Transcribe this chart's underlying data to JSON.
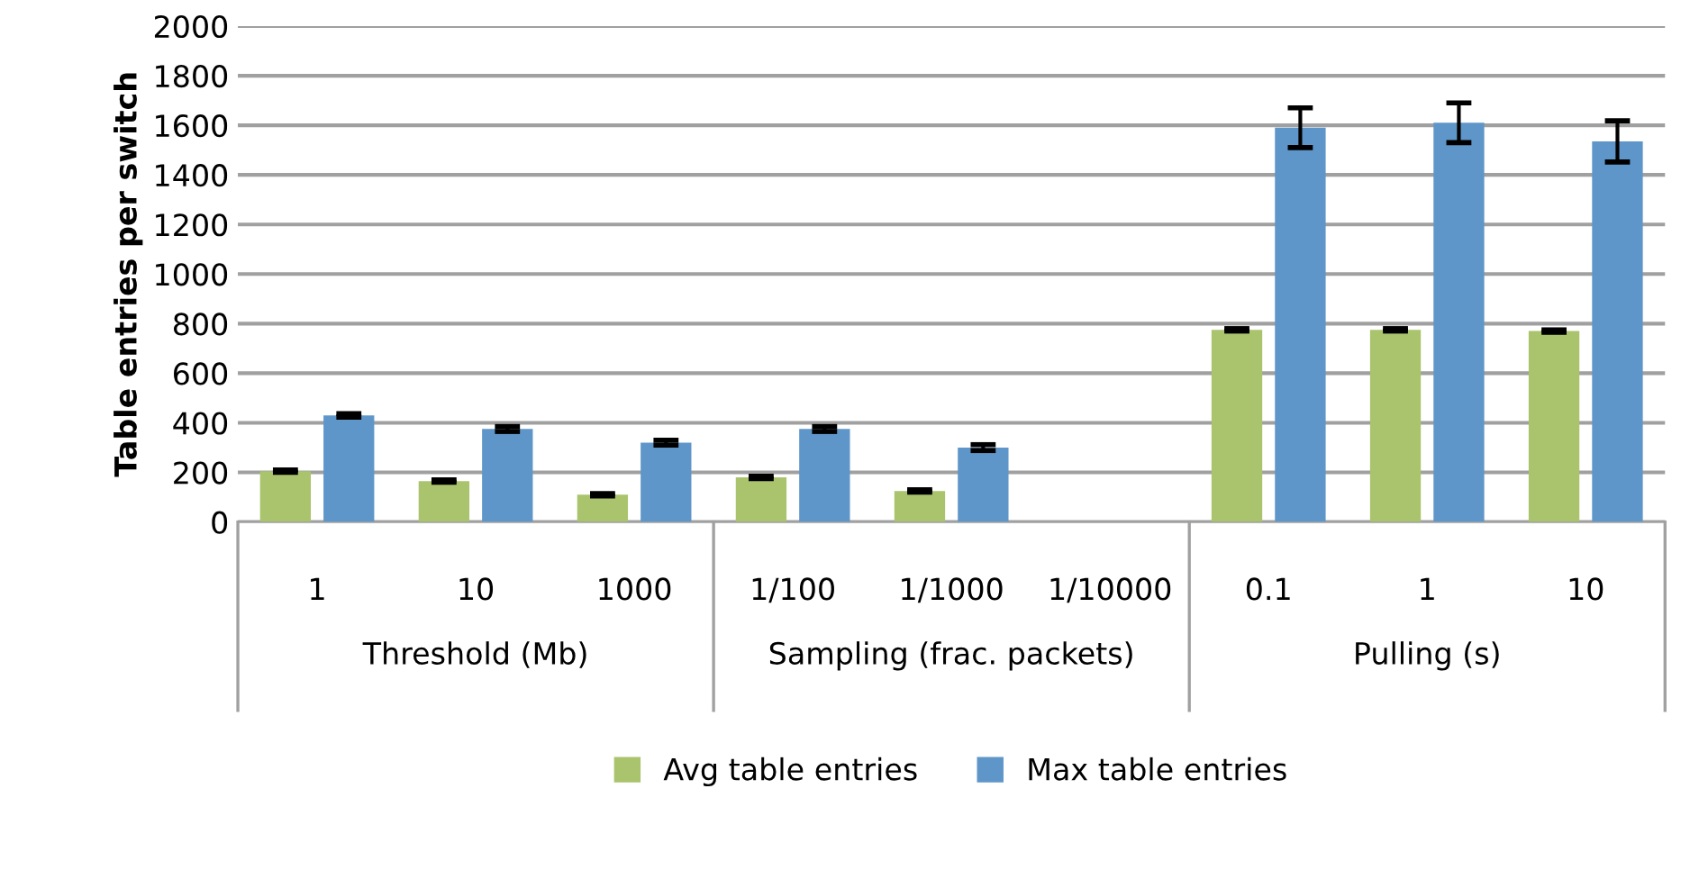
{
  "chart_data": {
    "type": "bar",
    "ylabel": "Table entries per switch",
    "categories": [
      "1",
      "10",
      "1000",
      "1/100",
      "1/1000",
      "1/10000",
      "0.1",
      "1",
      "10"
    ],
    "series": [
      {
        "name": "Avg table entries",
        "color": "#a9c46c",
        "values": [
          205,
          165,
          110,
          180,
          125,
          null,
          775,
          775,
          770
        ],
        "errors": [
          5,
          5,
          5,
          5,
          5,
          null,
          5,
          5,
          5
        ]
      },
      {
        "name": "Max table entries",
        "color": "#5f96c9",
        "values": [
          430,
          375,
          320,
          375,
          300,
          null,
          1590,
          1610,
          1535
        ],
        "errors": [
          7,
          10,
          10,
          10,
          12,
          null,
          80,
          80,
          83
        ]
      }
    ],
    "annotations": [
      "Threshold (Mb)",
      "Sampling (frac. packets)",
      "Pulling (s)"
    ],
    "ylim": [
      0,
      2000
    ],
    "yticks": [
      0,
      200,
      400,
      600,
      800,
      1000,
      1200,
      1400,
      1600,
      1800,
      2000
    ],
    "grid": "y",
    "legend": "bottom"
  }
}
